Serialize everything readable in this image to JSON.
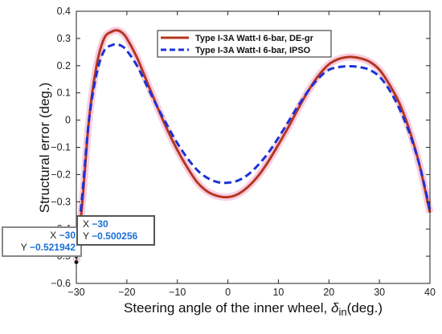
{
  "chart_data": {
    "type": "line",
    "title": "",
    "xlabel": "Steering angle of the inner wheel, ",
    "xlabel_symbol": "δ",
    "xlabel_sub": "in",
    "xlabel_unit": "(deg.)",
    "ylabel": "Structural error (deg.)",
    "xlim": [
      -30,
      40
    ],
    "ylim": [
      -0.6,
      0.4
    ],
    "xticks": [
      "-30",
      "-20",
      "-10",
      "0",
      "10",
      "20",
      "30",
      "40"
    ],
    "yticks": [
      "-0.6",
      "-0.5",
      "-0.4",
      "-0.3",
      "-0.2",
      "-0.1",
      "0",
      "0.1",
      "0.2",
      "0.3",
      "0.4"
    ],
    "grid": false,
    "legend_position": "top-right",
    "series": [
      {
        "name": "Type I-3A Watt-I 6-bar, DE-gr",
        "color": "#b5361f",
        "style": "solid",
        "x": [
          -30,
          -28.8,
          -27.5,
          -26,
          -24.5,
          -23,
          -22,
          -21,
          -20,
          -18,
          -16,
          -14,
          -12,
          -10,
          -8,
          -6,
          -4,
          -2,
          0,
          2,
          4,
          6,
          8,
          10,
          12,
          14,
          16,
          18,
          20,
          22,
          24,
          26,
          28,
          30,
          32,
          34,
          36,
          38,
          40
        ],
        "y": [
          -0.522,
          -0.3,
          0.0,
          0.2,
          0.3,
          0.325,
          0.33,
          0.322,
          0.3,
          0.23,
          0.14,
          0.05,
          -0.035,
          -0.11,
          -0.175,
          -0.23,
          -0.263,
          -0.279,
          -0.283,
          -0.272,
          -0.245,
          -0.205,
          -0.152,
          -0.09,
          -0.025,
          0.045,
          0.11,
          0.165,
          0.205,
          0.225,
          0.232,
          0.228,
          0.215,
          0.185,
          0.13,
          0.06,
          -0.04,
          -0.17,
          -0.34
        ]
      },
      {
        "name": "Type I-3A Watt-I 6-bar, IPSO",
        "color": "#1a33d6",
        "style": "dashed",
        "x": [
          -30,
          -28.8,
          -27.5,
          -26,
          -24.5,
          -23,
          -22,
          -21,
          -20,
          -18,
          -16,
          -14,
          -12,
          -10,
          -8,
          -6,
          -4,
          -2,
          0,
          2,
          4,
          6,
          8,
          10,
          12,
          14,
          16,
          18,
          20,
          22,
          24,
          26,
          28,
          30,
          32,
          34,
          36,
          38,
          40
        ],
        "y": [
          -0.5,
          -0.27,
          0.0,
          0.17,
          0.255,
          0.275,
          0.278,
          0.272,
          0.255,
          0.2,
          0.125,
          0.05,
          -0.02,
          -0.085,
          -0.14,
          -0.185,
          -0.213,
          -0.228,
          -0.23,
          -0.222,
          -0.2,
          -0.165,
          -0.12,
          -0.065,
          -0.005,
          0.055,
          0.11,
          0.155,
          0.185,
          0.195,
          0.198,
          0.195,
          0.185,
          0.16,
          0.11,
          0.04,
          -0.05,
          -0.17,
          -0.33
        ]
      }
    ],
    "datatips": [
      {
        "x_label": "X",
        "x_value": "-30",
        "y_label": "Y",
        "y_value": "-0.521942"
      },
      {
        "x_label": "X",
        "x_value": "-30",
        "y_label": "Y",
        "y_value": "-0.500256"
      }
    ]
  }
}
